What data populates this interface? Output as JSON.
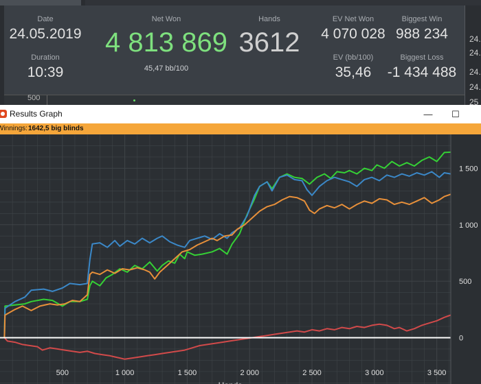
{
  "stats": {
    "date": {
      "label": "Date",
      "value": "24.05.2019"
    },
    "duration": {
      "label": "Duration",
      "value": "10:39"
    },
    "net_won": {
      "label": "Net Won",
      "value": "4 813 869",
      "sub": "45,47 bb/100"
    },
    "hands": {
      "label": "Hands",
      "value": "3612"
    },
    "ev_net_won": {
      "label": "EV Net Won",
      "value": "4 070 028"
    },
    "ev_bb": {
      "label": "EV (bb/100)",
      "value": "35,46"
    },
    "biggest_win": {
      "label": "Biggest Win",
      "value": "988 234"
    },
    "biggest_loss": {
      "label": "Biggest Loss",
      "value": "-1 434 488"
    },
    "side_values": [
      "24.",
      "24.",
      "24.",
      "24.",
      "25"
    ],
    "mini_axis_label": "500"
  },
  "window": {
    "title": "Results Graph",
    "minimize": "—",
    "maximize": "☐",
    "winnings_key": "Winnings:",
    "winnings_value": "1642,5 big blinds"
  },
  "colors": {
    "green": "#35d135",
    "blue": "#3b88c8",
    "orange": "#e8903a",
    "red": "#d24a4a",
    "zero": "#ffffff",
    "background": "#2b2f33",
    "grid": "#3f4448",
    "accent": "#f5a63a"
  },
  "chart_data": {
    "type": "line",
    "xlim": [
      0,
      3612
    ],
    "ylim": [
      -410,
      1800
    ],
    "x_ticks": [
      500,
      1000,
      1500,
      2000,
      2500,
      3000,
      3500
    ],
    "x_tick_labels": [
      "500",
      "1 000",
      "1 500",
      "2 000",
      "2 500",
      "3 000",
      "3 500"
    ],
    "y_ticks": [
      0,
      500,
      1000,
      1500
    ],
    "y_tick_labels": [
      "0",
      "500",
      "1 000",
      "1 500"
    ],
    "xlabel": "Hands",
    "grid": true,
    "zero_line": true,
    "series": [
      {
        "color": "green",
        "points": [
          [
            0,
            0
          ],
          [
            35,
            0
          ],
          [
            40,
            280
          ],
          [
            120,
            290
          ],
          [
            200,
            300
          ],
          [
            250,
            320
          ],
          [
            350,
            340
          ],
          [
            420,
            330
          ],
          [
            500,
            280
          ],
          [
            560,
            320
          ],
          [
            640,
            320
          ],
          [
            700,
            340
          ],
          [
            720,
            460
          ],
          [
            740,
            500
          ],
          [
            800,
            460
          ],
          [
            850,
            530
          ],
          [
            900,
            560
          ],
          [
            960,
            610
          ],
          [
            1020,
            580
          ],
          [
            1080,
            640
          ],
          [
            1140,
            610
          ],
          [
            1200,
            670
          ],
          [
            1260,
            590
          ],
          [
            1300,
            640
          ],
          [
            1350,
            680
          ],
          [
            1400,
            660
          ],
          [
            1440,
            740
          ],
          [
            1480,
            700
          ],
          [
            1500,
            760
          ],
          [
            1560,
            730
          ],
          [
            1620,
            740
          ],
          [
            1700,
            760
          ],
          [
            1760,
            790
          ],
          [
            1820,
            740
          ],
          [
            1860,
            830
          ],
          [
            1920,
            920
          ],
          [
            1980,
            1090
          ],
          [
            2040,
            1230
          ],
          [
            2080,
            1340
          ],
          [
            2140,
            1380
          ],
          [
            2180,
            1320
          ],
          [
            2240,
            1420
          ],
          [
            2300,
            1450
          ],
          [
            2360,
            1420
          ],
          [
            2420,
            1410
          ],
          [
            2480,
            1360
          ],
          [
            2540,
            1420
          ],
          [
            2600,
            1450
          ],
          [
            2650,
            1410
          ],
          [
            2700,
            1470
          ],
          [
            2760,
            1460
          ],
          [
            2800,
            1480
          ],
          [
            2860,
            1450
          ],
          [
            2920,
            1500
          ],
          [
            2980,
            1480
          ],
          [
            3020,
            1530
          ],
          [
            3080,
            1500
          ],
          [
            3140,
            1560
          ],
          [
            3200,
            1520
          ],
          [
            3260,
            1550
          ],
          [
            3320,
            1520
          ],
          [
            3380,
            1570
          ],
          [
            3440,
            1600
          ],
          [
            3500,
            1560
          ],
          [
            3560,
            1640
          ],
          [
            3612,
            1642.5
          ]
        ]
      },
      {
        "color": "blue",
        "points": [
          [
            0,
            0
          ],
          [
            35,
            0
          ],
          [
            40,
            260
          ],
          [
            120,
            320
          ],
          [
            200,
            360
          ],
          [
            250,
            420
          ],
          [
            350,
            430
          ],
          [
            420,
            410
          ],
          [
            500,
            440
          ],
          [
            560,
            480
          ],
          [
            640,
            470
          ],
          [
            700,
            480
          ],
          [
            720,
            690
          ],
          [
            740,
            830
          ],
          [
            800,
            840
          ],
          [
            860,
            800
          ],
          [
            920,
            860
          ],
          [
            960,
            810
          ],
          [
            1020,
            860
          ],
          [
            1080,
            830
          ],
          [
            1140,
            880
          ],
          [
            1200,
            840
          ],
          [
            1260,
            880
          ],
          [
            1300,
            900
          ],
          [
            1360,
            850
          ],
          [
            1420,
            820
          ],
          [
            1480,
            800
          ],
          [
            1520,
            860
          ],
          [
            1580,
            880
          ],
          [
            1640,
            900
          ],
          [
            1700,
            870
          ],
          [
            1760,
            920
          ],
          [
            1820,
            880
          ],
          [
            1860,
            930
          ],
          [
            1920,
            970
          ],
          [
            1980,
            1080
          ],
          [
            2040,
            1260
          ],
          [
            2080,
            1340
          ],
          [
            2140,
            1380
          ],
          [
            2180,
            1300
          ],
          [
            2240,
            1420
          ],
          [
            2300,
            1440
          ],
          [
            2360,
            1400
          ],
          [
            2420,
            1390
          ],
          [
            2460,
            1310
          ],
          [
            2500,
            1260
          ],
          [
            2560,
            1340
          ],
          [
            2620,
            1390
          ],
          [
            2680,
            1420
          ],
          [
            2740,
            1400
          ],
          [
            2800,
            1380
          ],
          [
            2860,
            1340
          ],
          [
            2920,
            1400
          ],
          [
            2980,
            1420
          ],
          [
            3040,
            1390
          ],
          [
            3100,
            1440
          ],
          [
            3160,
            1420
          ],
          [
            3220,
            1450
          ],
          [
            3280,
            1430
          ],
          [
            3340,
            1460
          ],
          [
            3400,
            1440
          ],
          [
            3460,
            1470
          ],
          [
            3520,
            1420
          ],
          [
            3560,
            1460
          ],
          [
            3612,
            1450
          ]
        ]
      },
      {
        "color": "orange",
        "points": [
          [
            0,
            0
          ],
          [
            35,
            0
          ],
          [
            40,
            200
          ],
          [
            120,
            250
          ],
          [
            180,
            280
          ],
          [
            250,
            240
          ],
          [
            320,
            280
          ],
          [
            400,
            300
          ],
          [
            460,
            290
          ],
          [
            520,
            300
          ],
          [
            580,
            330
          ],
          [
            640,
            320
          ],
          [
            700,
            380
          ],
          [
            720,
            560
          ],
          [
            740,
            580
          ],
          [
            800,
            560
          ],
          [
            860,
            600
          ],
          [
            920,
            570
          ],
          [
            980,
            610
          ],
          [
            1040,
            600
          ],
          [
            1100,
            620
          ],
          [
            1160,
            600
          ],
          [
            1200,
            580
          ],
          [
            1240,
            520
          ],
          [
            1280,
            580
          ],
          [
            1340,
            640
          ],
          [
            1400,
            700
          ],
          [
            1460,
            760
          ],
          [
            1520,
            780
          ],
          [
            1580,
            820
          ],
          [
            1640,
            850
          ],
          [
            1700,
            880
          ],
          [
            1740,
            860
          ],
          [
            1800,
            900
          ],
          [
            1860,
            910
          ],
          [
            1900,
            960
          ],
          [
            1960,
            1000
          ],
          [
            2020,
            1060
          ],
          [
            2080,
            1120
          ],
          [
            2140,
            1160
          ],
          [
            2200,
            1180
          ],
          [
            2260,
            1220
          ],
          [
            2320,
            1250
          ],
          [
            2380,
            1240
          ],
          [
            2440,
            1210
          ],
          [
            2480,
            1130
          ],
          [
            2520,
            1100
          ],
          [
            2560,
            1140
          ],
          [
            2620,
            1170
          ],
          [
            2680,
            1150
          ],
          [
            2740,
            1180
          ],
          [
            2800,
            1140
          ],
          [
            2860,
            1180
          ],
          [
            2920,
            1210
          ],
          [
            2980,
            1190
          ],
          [
            3040,
            1230
          ],
          [
            3100,
            1220
          ],
          [
            3160,
            1180
          ],
          [
            3220,
            1200
          ],
          [
            3280,
            1180
          ],
          [
            3340,
            1210
          ],
          [
            3400,
            1240
          ],
          [
            3460,
            1190
          ],
          [
            3520,
            1220
          ],
          [
            3560,
            1250
          ],
          [
            3612,
            1270
          ]
        ]
      },
      {
        "color": "red",
        "points": [
          [
            0,
            0
          ],
          [
            35,
            0
          ],
          [
            60,
            -30
          ],
          [
            120,
            -40
          ],
          [
            180,
            -60
          ],
          [
            240,
            -70
          ],
          [
            300,
            -80
          ],
          [
            340,
            -110
          ],
          [
            400,
            -90
          ],
          [
            460,
            -100
          ],
          [
            520,
            -110
          ],
          [
            580,
            -120
          ],
          [
            640,
            -130
          ],
          [
            700,
            -120
          ],
          [
            760,
            -140
          ],
          [
            820,
            -150
          ],
          [
            880,
            -160
          ],
          [
            920,
            -170
          ],
          [
            960,
            -180
          ],
          [
            1000,
            -190
          ],
          [
            1060,
            -180
          ],
          [
            1120,
            -170
          ],
          [
            1180,
            -160
          ],
          [
            1240,
            -150
          ],
          [
            1300,
            -140
          ],
          [
            1360,
            -130
          ],
          [
            1420,
            -120
          ],
          [
            1480,
            -110
          ],
          [
            1540,
            -90
          ],
          [
            1600,
            -70
          ],
          [
            1660,
            -60
          ],
          [
            1720,
            -50
          ],
          [
            1780,
            -40
          ],
          [
            1840,
            -30
          ],
          [
            1900,
            -20
          ],
          [
            1960,
            -10
          ],
          [
            2020,
            0
          ],
          [
            2080,
            10
          ],
          [
            2140,
            20
          ],
          [
            2200,
            30
          ],
          [
            2260,
            40
          ],
          [
            2320,
            50
          ],
          [
            2380,
            60
          ],
          [
            2440,
            50
          ],
          [
            2500,
            70
          ],
          [
            2560,
            60
          ],
          [
            2620,
            80
          ],
          [
            2680,
            70
          ],
          [
            2740,
            90
          ],
          [
            2800,
            80
          ],
          [
            2860,
            100
          ],
          [
            2920,
            90
          ],
          [
            2980,
            110
          ],
          [
            3040,
            120
          ],
          [
            3100,
            110
          ],
          [
            3160,
            80
          ],
          [
            3200,
            90
          ],
          [
            3260,
            60
          ],
          [
            3320,
            80
          ],
          [
            3380,
            110
          ],
          [
            3440,
            130
          ],
          [
            3500,
            150
          ],
          [
            3560,
            180
          ],
          [
            3612,
            200
          ]
        ]
      }
    ]
  }
}
